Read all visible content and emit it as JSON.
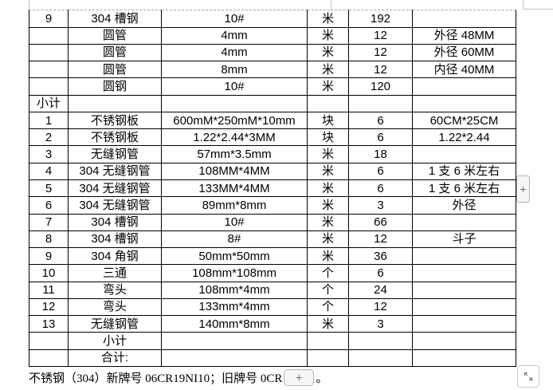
{
  "document": {
    "table": {
      "rows": [
        [
          "9",
          "304 槽钢",
          "10#",
          "米",
          "192",
          ""
        ],
        [
          "",
          "圆管",
          "4mm",
          "米",
          "12",
          "外径 48MM"
        ],
        [
          "",
          "圆管",
          "4mm",
          "米",
          "12",
          "外径 60MM"
        ],
        [
          "",
          "圆管",
          "8mm",
          "米",
          "12",
          "内径 40MM"
        ],
        [
          "",
          "圆钢",
          "10#",
          "米",
          "120",
          ""
        ],
        [
          "小计",
          "",
          "",
          "",
          "",
          ""
        ],
        [
          "1",
          "不锈钢板",
          "600mM*250mM*10mm",
          "块",
          "6",
          "60CM*25CM"
        ],
        [
          "2",
          "不锈钢板",
          "1.22*2.44*3MM",
          "块",
          "6",
          "1.22*2.44"
        ],
        [
          "3",
          "无缝钢管",
          "57mm*3.5mm",
          "米",
          "18",
          ""
        ],
        [
          "4",
          "304 无缝钢管",
          "108MM*4MM",
          "米",
          "6",
          "1 支 6 米左右"
        ],
        [
          "5",
          "304 无缝钢管",
          "133MM*4MM",
          "米",
          "6",
          "1 支 6 米左右"
        ],
        [
          "6",
          "304 无缝钢管",
          "89mm*8mm",
          "米",
          "3",
          "外径"
        ],
        [
          "7",
          "304 槽钢",
          "10#",
          "米",
          "66",
          ""
        ],
        [
          "8",
          "304 槽钢",
          "8#",
          "米",
          "12",
          "斗子"
        ],
        [
          "9",
          "304 角钢",
          "50mm*50mm",
          "米",
          "36",
          ""
        ],
        [
          "10",
          "三通",
          "108mm*108mm",
          "个",
          "6",
          ""
        ],
        [
          "11",
          "弯头",
          "108mm*4mm",
          "个",
          "24",
          ""
        ],
        [
          "12",
          "弯头",
          "133mm*4mm",
          "个",
          "12",
          ""
        ],
        [
          "13",
          "无缝钢管",
          "140mm*8mm",
          "米",
          "3",
          ""
        ],
        [
          "",
          "小计",
          "",
          "",
          "",
          ""
        ],
        [
          "",
          "合计:",
          "",
          "",
          "",
          ""
        ]
      ]
    },
    "footer": {
      "prefix": "不锈钢（304）新牌号 06CR19NI10；旧牌号 0CR",
      "suffix": "。"
    }
  },
  "controls": {
    "insert_column_button_label": "+",
    "insert_inline_button_label": "+",
    "resize_handle_icon": "resize-diagonal-icon"
  },
  "colors": {
    "table_border": "#000000",
    "continuation_border": "#a6a6a6",
    "button_border": "#b3b3b3",
    "button_background": "#f6f6f6",
    "button_foreground": "#6b6b6b"
  }
}
